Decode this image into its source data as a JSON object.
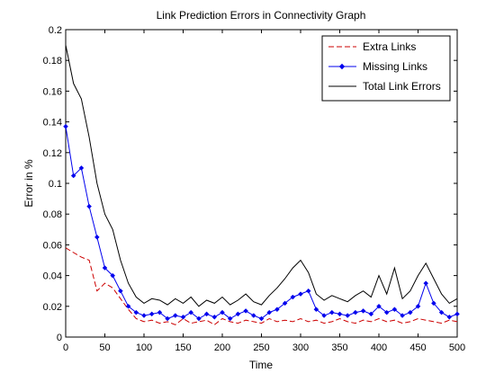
{
  "chart_data": {
    "type": "line",
    "title": "Link Prediction Errors in Connectivity Graph",
    "xlabel": "Time",
    "ylabel": "Error in %",
    "xlim": [
      0,
      500
    ],
    "ylim": [
      0,
      0.2
    ],
    "xticks": [
      0,
      50,
      100,
      150,
      200,
      250,
      300,
      350,
      400,
      450,
      500
    ],
    "yticks": [
      0,
      0.02,
      0.04,
      0.06,
      0.08,
      0.1,
      0.12,
      0.14,
      0.16,
      0.18,
      0.2
    ],
    "grid": false,
    "legend_position": "top-right",
    "x": [
      0,
      10,
      20,
      30,
      40,
      50,
      60,
      70,
      80,
      90,
      100,
      110,
      120,
      130,
      140,
      150,
      160,
      170,
      180,
      190,
      200,
      210,
      220,
      230,
      240,
      250,
      260,
      270,
      280,
      290,
      300,
      310,
      320,
      330,
      340,
      350,
      360,
      370,
      380,
      390,
      400,
      410,
      420,
      430,
      440,
      450,
      460,
      470,
      480,
      490,
      500
    ],
    "series": [
      {
        "name": "Extra Links",
        "color": "#cc0000",
        "style": "dashed",
        "marker": "none",
        "values": [
          0.058,
          0.055,
          0.052,
          0.05,
          0.03,
          0.035,
          0.032,
          0.025,
          0.018,
          0.012,
          0.01,
          0.011,
          0.009,
          0.01,
          0.008,
          0.012,
          0.009,
          0.01,
          0.011,
          0.008,
          0.012,
          0.01,
          0.009,
          0.011,
          0.01,
          0.009,
          0.012,
          0.01,
          0.011,
          0.01,
          0.012,
          0.01,
          0.011,
          0.009,
          0.01,
          0.012,
          0.01,
          0.009,
          0.011,
          0.01,
          0.012,
          0.01,
          0.011,
          0.009,
          0.01,
          0.012,
          0.011,
          0.01,
          0.009,
          0.011,
          0.01
        ]
      },
      {
        "name": "Missing Links",
        "color": "#0000ee",
        "style": "solid",
        "marker": "diamond",
        "values": [
          0.137,
          0.105,
          0.11,
          0.085,
          0.065,
          0.045,
          0.04,
          0.03,
          0.02,
          0.016,
          0.014,
          0.015,
          0.016,
          0.012,
          0.014,
          0.013,
          0.016,
          0.012,
          0.015,
          0.013,
          0.016,
          0.012,
          0.015,
          0.017,
          0.014,
          0.012,
          0.016,
          0.018,
          0.022,
          0.026,
          0.028,
          0.03,
          0.018,
          0.014,
          0.016,
          0.015,
          0.014,
          0.016,
          0.017,
          0.015,
          0.02,
          0.016,
          0.018,
          0.014,
          0.016,
          0.02,
          0.035,
          0.022,
          0.016,
          0.013,
          0.015
        ]
      },
      {
        "name": "Total Link Errors",
        "color": "#000000",
        "style": "solid",
        "marker": "none",
        "values": [
          0.19,
          0.165,
          0.155,
          0.13,
          0.1,
          0.08,
          0.07,
          0.05,
          0.035,
          0.026,
          0.022,
          0.025,
          0.024,
          0.021,
          0.025,
          0.022,
          0.026,
          0.02,
          0.024,
          0.022,
          0.026,
          0.021,
          0.024,
          0.028,
          0.023,
          0.021,
          0.027,
          0.032,
          0.038,
          0.045,
          0.05,
          0.042,
          0.028,
          0.024,
          0.027,
          0.025,
          0.023,
          0.027,
          0.03,
          0.026,
          0.04,
          0.028,
          0.045,
          0.025,
          0.03,
          0.04,
          0.048,
          0.038,
          0.028,
          0.022,
          0.025
        ]
      }
    ]
  }
}
